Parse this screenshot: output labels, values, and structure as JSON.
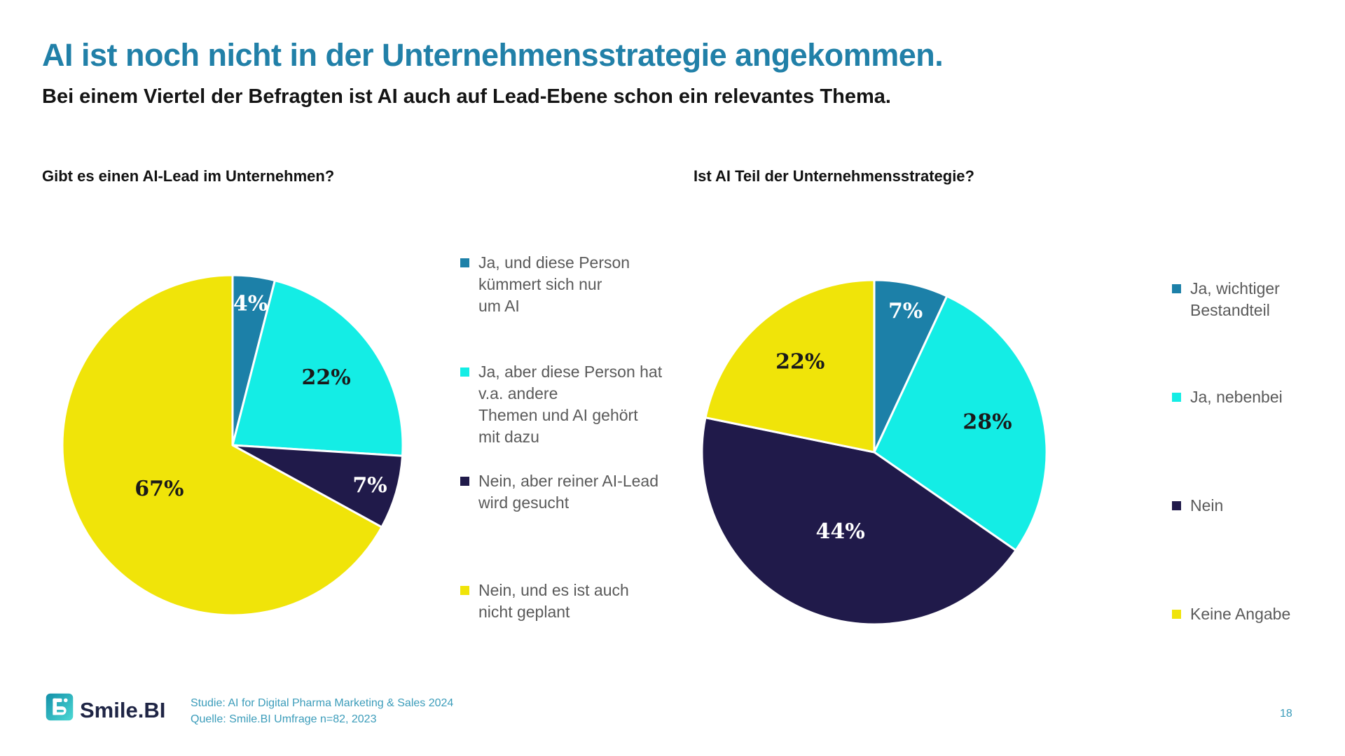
{
  "header": {
    "title": "AI ist noch nicht in der Unternehmensstrategie angekommen.",
    "subtitle": "Bei einem Viertel der Befragten ist AI auch auf Lead-Ebene schon ein relevantes Thema."
  },
  "colors": {
    "title_accent": "#2180a8",
    "teal": "#1c80a8",
    "cyan": "#14ede5",
    "navy": "#201a4a",
    "yellow": "#f0e409",
    "legend_text": "#5a5a5a",
    "source_text": "#3b9cba",
    "logo_navy": "#1f2545"
  },
  "chart_data": [
    {
      "type": "pie",
      "title": "Gibt es einen AI-Lead im Unternehmen?",
      "legend_position": "right",
      "slices": [
        {
          "label": "Ja, und diese Person kümmert sich nur um AI",
          "legend_lines": [
            "Ja, und diese Person",
            "kümmert sich nur",
            "um AI"
          ],
          "value": 4,
          "display": "4%",
          "color": "#1c80a8",
          "label_color": "#ffffff"
        },
        {
          "label": "Ja, aber diese Person hat v.a. andere Themen und AI gehört mit dazu",
          "legend_lines": [
            "Ja, aber diese Person hat",
            "v.a. andere",
            "Themen und AI gehört",
            "mit dazu"
          ],
          "value": 22,
          "display": "22%",
          "color": "#14ede5",
          "label_color": "#1a1a1a"
        },
        {
          "label": "Nein, aber reiner AI-Lead wird gesucht",
          "legend_lines": [
            "Nein, aber reiner AI-Lead",
            "wird gesucht"
          ],
          "value": 7,
          "display": "7%",
          "color": "#201a4a",
          "label_color": "#ffffff"
        },
        {
          "label": "Nein, und es ist auch nicht geplant",
          "legend_lines": [
            "Nein, und es ist auch",
            "nicht geplant"
          ],
          "value": 67,
          "display": "67%",
          "color": "#f0e409",
          "label_color": "#1a1a1a"
        }
      ]
    },
    {
      "type": "pie",
      "title": "Ist AI Teil der Unternehmensstrategie?",
      "legend_position": "right",
      "slices": [
        {
          "label": "Ja, wichtiger Bestandteil",
          "legend_lines": [
            "Ja, wichtiger",
            "Bestandteil"
          ],
          "value": 7,
          "display": "7%",
          "color": "#1c80a8",
          "label_color": "#ffffff"
        },
        {
          "label": "Ja, nebenbei",
          "legend_lines": [
            "Ja, nebenbei"
          ],
          "value": 28,
          "display": "28%",
          "color": "#14ede5",
          "label_color": "#1a1a1a"
        },
        {
          "label": "Nein",
          "legend_lines": [
            "Nein"
          ],
          "value": 44,
          "display": "44%",
          "color": "#201a4a",
          "label_color": "#ffffff"
        },
        {
          "label": "Keine Angabe",
          "legend_lines": [
            "Keine Angabe"
          ],
          "value": 22,
          "display": "22%",
          "color": "#f0e409",
          "label_color": "#1a1a1a"
        }
      ]
    }
  ],
  "footer": {
    "logo_text": "Smile.BI",
    "source_line1": "Studie: AI for Digital Pharma Marketing & Sales 2024",
    "source_line2": "Quelle: Smile.BI Umfrage n=82, 2023",
    "page_number": "18"
  }
}
